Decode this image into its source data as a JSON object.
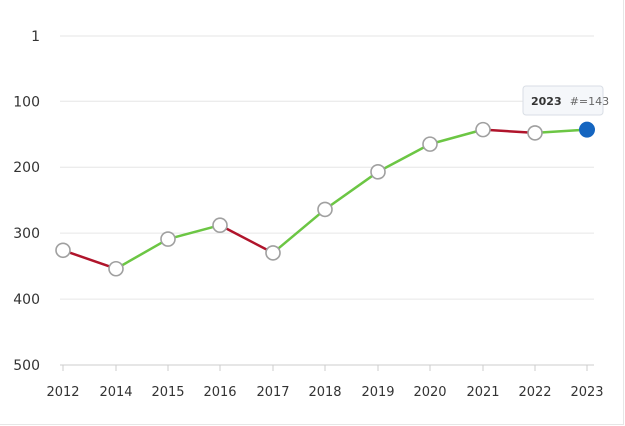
{
  "chart_data": {
    "type": "line",
    "y_axis": {
      "reversed": true,
      "range": [
        1,
        500
      ],
      "ticks": [
        1,
        100,
        200,
        300,
        400,
        500
      ],
      "tick_labels": [
        "1",
        "100",
        "200",
        "300",
        "400",
        "500"
      ]
    },
    "grid": "horizontal",
    "categories": [
      "2012",
      "2014",
      "2015",
      "2016",
      "2017",
      "2018",
      "2019",
      "2020",
      "2021",
      "2022",
      "2023"
    ],
    "series": [
      {
        "values": [
          326,
          354,
          309,
          288,
          330,
          264,
          207,
          165,
          143,
          148,
          143
        ]
      }
    ],
    "colors": {
      "improving": "#6cc644",
      "declining": "#b0142b",
      "grid": "#e6e6e6",
      "marker_fill": "#ffffff",
      "marker_stroke": "#a0a0a0",
      "highlight": "#1565c0"
    },
    "tooltip": {
      "category": "2023",
      "year_text": "2023",
      "value_text": "#=143"
    }
  }
}
